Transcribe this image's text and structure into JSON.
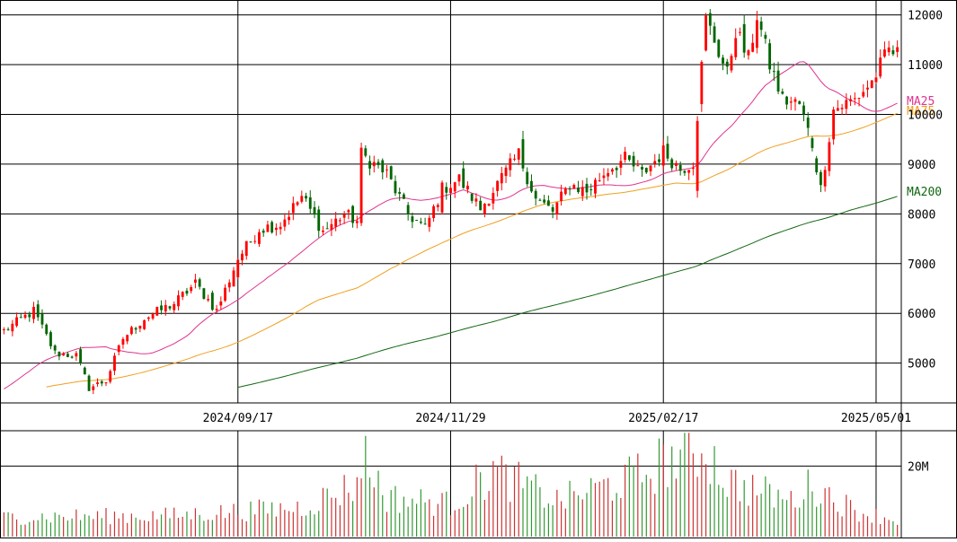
{
  "chart_data": {
    "type": "candlestick",
    "price_axis": {
      "ylim": [
        4200,
        12300
      ],
      "ticks": [
        5000,
        6000,
        7000,
        8000,
        9000,
        10000,
        11000,
        12000
      ],
      "tick_labels": [
        "5000",
        "6000",
        "7000",
        "8000",
        "9000",
        "10000",
        "11000",
        "12000"
      ]
    },
    "volume_axis": {
      "ylim": [
        0,
        30000000
      ],
      "ticks": [
        20000000
      ],
      "tick_labels": [
        "20M"
      ]
    },
    "x_labels": [
      "2024/09/17",
      "2024/11/29",
      "2025/02/17",
      "2025/05/01"
    ],
    "x_label_index": [
      55,
      105,
      155,
      205
    ],
    "moving_averages": [
      {
        "name": "MA25",
        "color": "#e0338f",
        "window": 25
      },
      {
        "name": "MA75",
        "color": "#f0a020",
        "window": 75
      },
      {
        "name": "MA200",
        "color": "#116611",
        "window": 200
      }
    ],
    "colors": {
      "up": "#ff0000",
      "down": "#006600",
      "volume_up": "#cc3333",
      "volume_down": "#339933"
    },
    "anchors": [
      [
        0,
        5650
      ],
      [
        7,
        6050
      ],
      [
        12,
        5200
      ],
      [
        17,
        5150
      ],
      [
        20,
        4500
      ],
      [
        24,
        4650
      ],
      [
        28,
        5500
      ],
      [
        33,
        5900
      ],
      [
        40,
        6200
      ],
      [
        45,
        6600
      ],
      [
        50,
        6050
      ],
      [
        55,
        7100
      ],
      [
        60,
        7700
      ],
      [
        65,
        7800
      ],
      [
        70,
        8350
      ],
      [
        75,
        7650
      ],
      [
        80,
        8000
      ],
      [
        83,
        7850
      ],
      [
        84,
        9200
      ],
      [
        90,
        8800
      ],
      [
        95,
        8000
      ],
      [
        99,
        7700
      ],
      [
        103,
        8500
      ],
      [
        107,
        8700
      ],
      [
        112,
        8100
      ],
      [
        116,
        8600
      ],
      [
        121,
        9200
      ],
      [
        125,
        8300
      ],
      [
        129,
        8050
      ],
      [
        133,
        8600
      ],
      [
        137,
        8450
      ],
      [
        142,
        8900
      ],
      [
        146,
        9100
      ],
      [
        150,
        8800
      ],
      [
        155,
        9250
      ],
      [
        159,
        8900
      ],
      [
        162,
        9050
      ],
      [
        165,
        11900
      ],
      [
        167,
        11500
      ],
      [
        170,
        10800
      ],
      [
        172,
        11700
      ],
      [
        175,
        11100
      ],
      [
        177,
        12000
      ],
      [
        180,
        11000
      ],
      [
        183,
        10300
      ],
      [
        187,
        10200
      ],
      [
        190,
        9400
      ],
      [
        192,
        8500
      ],
      [
        195,
        10100
      ],
      [
        200,
        10300
      ],
      [
        204,
        10650
      ],
      [
        208,
        11300
      ],
      [
        210,
        11200
      ]
    ],
    "approx_volume_level": [
      [
        0,
        6000000
      ],
      [
        40,
        6500000
      ],
      [
        70,
        9000000
      ],
      [
        83,
        16000000
      ],
      [
        84,
        26000000
      ],
      [
        90,
        12000000
      ],
      [
        105,
        10000000
      ],
      [
        115,
        20000000
      ],
      [
        130,
        11000000
      ],
      [
        150,
        19000000
      ],
      [
        155,
        23000000
      ],
      [
        165,
        27000000
      ],
      [
        170,
        17000000
      ],
      [
        185,
        11000000
      ],
      [
        190,
        16000000
      ],
      [
        200,
        8000000
      ],
      [
        210,
        5000000
      ]
    ]
  }
}
